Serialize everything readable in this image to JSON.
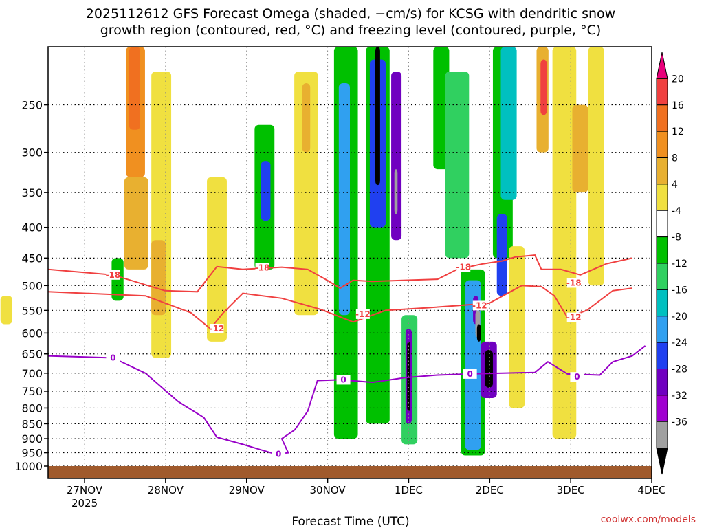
{
  "title": {
    "line1": "2025112612 GFS Forecast Omega (shaded, −cm/s) for KCSG with dendritic snow",
    "line2": "growth region (contoured, red, °C) and freezing level (contoured, purple, °C)"
  },
  "xlabel": "Forecast Time (UTC)",
  "credit": "coolwx.com/models",
  "chart_data": {
    "type": "heatmap",
    "x_range": [
      "2025-11-26T12",
      "2025-12-04T00"
    ],
    "y_axis": {
      "unit": "hPa",
      "range": [
        1000,
        200
      ],
      "ticks": [
        250,
        300,
        350,
        400,
        450,
        500,
        550,
        600,
        650,
        700,
        750,
        800,
        850,
        900,
        950,
        1000
      ]
    },
    "x_ticks": [
      {
        "day": 1,
        "label": "27NOV",
        "sub": "2025"
      },
      {
        "day": 2,
        "label": "28NOV",
        "sub": ""
      },
      {
        "day": 3,
        "label": "29NOV",
        "sub": ""
      },
      {
        "day": 4,
        "label": "30NOV",
        "sub": ""
      },
      {
        "day": 5,
        "label": "1DEC",
        "sub": ""
      },
      {
        "day": 6,
        "label": "2DEC",
        "sub": ""
      },
      {
        "day": 7,
        "label": "3DEC",
        "sub": ""
      },
      {
        "day": 8,
        "label": "4DEC",
        "sub": ""
      }
    ],
    "colorbar": {
      "levels": [
        20,
        16,
        12,
        8,
        4,
        -4,
        -8,
        -12,
        -16,
        -20,
        -24,
        -28,
        -32,
        -36
      ],
      "colors": [
        "#e8007a",
        "#f04040",
        "#f07020",
        "#f09020",
        "#e8b030",
        "#f0e040",
        "#ffffff",
        "#00c000",
        "#30d060",
        "#00c0c0",
        "#30a0f0",
        "#2040f0",
        "#7000c0",
        "#a000d0",
        "#a0a0a0",
        "#000000"
      ]
    },
    "ground_color": "#a05a2c",
    "omega_cells": [
      {
        "x0": 2.68,
        "x1": 2.92,
        "p0": 200,
        "p1": 330,
        "c": "#f09020"
      },
      {
        "x0": 2.72,
        "x1": 2.86,
        "p0": 200,
        "p1": 275,
        "c": "#f07020"
      },
      {
        "x0": 2.66,
        "x1": 2.96,
        "p0": 330,
        "p1": 470,
        "c": "#e8b030"
      },
      {
        "x0": 3.0,
        "x1": 3.25,
        "p0": 220,
        "p1": 660,
        "c": "#f0e040"
      },
      {
        "x0": 3.0,
        "x1": 3.18,
        "p0": 420,
        "p1": 560,
        "c": "#e8b030"
      },
      {
        "x0": 2.5,
        "x1": 2.65,
        "p0": 450,
        "p1": 530,
        "c": "#00c000"
      },
      {
        "x0": 1.1,
        "x1": 1.25,
        "p0": 520,
        "p1": 580,
        "c": "#f0e040"
      },
      {
        "x0": 3.7,
        "x1": 3.95,
        "p0": 330,
        "p1": 620,
        "c": "#f0e040"
      },
      {
        "x0": 4.3,
        "x1": 4.55,
        "p0": 270,
        "p1": 470,
        "c": "#00c000"
      },
      {
        "x0": 4.38,
        "x1": 4.5,
        "p0": 310,
        "p1": 390,
        "c": "#2040f0"
      },
      {
        "x0": 4.8,
        "x1": 5.1,
        "p0": 220,
        "p1": 560,
        "c": "#f0e040"
      },
      {
        "x0": 4.9,
        "x1": 5.0,
        "p0": 230,
        "p1": 300,
        "c": "#e8b030"
      },
      {
        "x0": 5.3,
        "x1": 5.6,
        "p0": 200,
        "p1": 900,
        "c": "#00c000"
      },
      {
        "x0": 5.36,
        "x1": 5.5,
        "p0": 230,
        "p1": 560,
        "c": "#30a0f0"
      },
      {
        "x0": 5.7,
        "x1": 6.0,
        "p0": 200,
        "p1": 850,
        "c": "#00c000"
      },
      {
        "x0": 5.75,
        "x1": 5.95,
        "p0": 210,
        "p1": 400,
        "c": "#2040f0"
      },
      {
        "x0": 5.82,
        "x1": 5.88,
        "p0": 200,
        "p1": 340,
        "c": "#000000"
      },
      {
        "x0": 6.02,
        "x1": 6.15,
        "p0": 220,
        "p1": 420,
        "c": "#7000c0"
      },
      {
        "x0": 6.06,
        "x1": 6.1,
        "p0": 320,
        "p1": 380,
        "c": "#a0a0a0"
      },
      {
        "x0": 6.15,
        "x1": 6.35,
        "p0": 560,
        "p1": 920,
        "c": "#30d060"
      },
      {
        "x0": 6.2,
        "x1": 6.28,
        "p0": 590,
        "p1": 850,
        "c": "#7000c0"
      },
      {
        "x0": 6.22,
        "x1": 6.26,
        "p0": 620,
        "p1": 810,
        "c": "#000000"
      },
      {
        "x0": 6.55,
        "x1": 6.75,
        "p0": 200,
        "p1": 320,
        "c": "#00c000"
      },
      {
        "x0": 6.7,
        "x1": 7.0,
        "p0": 220,
        "p1": 450,
        "c": "#30d060"
      },
      {
        "x0": 6.9,
        "x1": 7.2,
        "p0": 470,
        "p1": 960,
        "c": "#00c000"
      },
      {
        "x0": 6.95,
        "x1": 7.15,
        "p0": 490,
        "p1": 940,
        "c": "#30a0f0"
      },
      {
        "x0": 7.05,
        "x1": 7.12,
        "p0": 520,
        "p1": 580,
        "c": "#7000c0"
      },
      {
        "x0": 7.08,
        "x1": 7.14,
        "p0": 550,
        "p1": 610,
        "c": "#a0a0a0"
      },
      {
        "x0": 7.1,
        "x1": 7.15,
        "p0": 580,
        "p1": 620,
        "c": "#000000"
      },
      {
        "x0": 7.15,
        "x1": 7.35,
        "p0": 620,
        "p1": 770,
        "c": "#7000c0"
      },
      {
        "x0": 7.2,
        "x1": 7.3,
        "p0": 640,
        "p1": 740,
        "c": "#000000"
      },
      {
        "x0": 7.3,
        "x1": 7.55,
        "p0": 200,
        "p1": 450,
        "c": "#00c000"
      },
      {
        "x0": 7.35,
        "x1": 7.48,
        "p0": 380,
        "p1": 520,
        "c": "#2040f0"
      },
      {
        "x0": 7.4,
        "x1": 7.6,
        "p0": 200,
        "p1": 360,
        "c": "#00c0c0"
      },
      {
        "x0": 7.85,
        "x1": 8.0,
        "p0": 200,
        "p1": 300,
        "c": "#e8b030"
      },
      {
        "x0": 7.9,
        "x1": 7.98,
        "p0": 210,
        "p1": 260,
        "c": "#f04040"
      },
      {
        "x0": 8.05,
        "x1": 8.35,
        "p0": 200,
        "p1": 900,
        "c": "#f0e040"
      },
      {
        "x0": 8.3,
        "x1": 8.5,
        "p0": 250,
        "p1": 350,
        "c": "#e8b030"
      },
      {
        "x0": 8.5,
        "x1": 8.7,
        "p0": 200,
        "p1": 500,
        "c": "#f0e040"
      },
      {
        "x0": 7.5,
        "x1": 7.7,
        "p0": 430,
        "p1": 800,
        "c": "#f0e040"
      }
    ],
    "contours": [
      {
        "level": "-18",
        "color": "#f04040",
        "points": [
          [
            0,
            470
          ],
          [
            1.0,
            480
          ],
          [
            1.8,
            510
          ],
          [
            2.3,
            512
          ],
          [
            2.6,
            465
          ],
          [
            3.0,
            470
          ],
          [
            3.6,
            466
          ],
          [
            4.0,
            470
          ],
          [
            4.3,
            490
          ],
          [
            4.5,
            505
          ],
          [
            4.7,
            490
          ],
          [
            5.0,
            492
          ],
          [
            5.5,
            490
          ],
          [
            6.0,
            488
          ],
          [
            6.3,
            470
          ],
          [
            6.7,
            460
          ],
          [
            7.0,
            455
          ],
          [
            7.2,
            448
          ],
          [
            7.5,
            445
          ],
          [
            7.6,
            470
          ],
          [
            7.9,
            470
          ],
          [
            8.2,
            480
          ],
          [
            8.6,
            460
          ],
          [
            9.0,
            450
          ]
        ],
        "labels": [
          [
            1.0,
            480
          ],
          [
            3.3,
            467
          ],
          [
            6.4,
            466
          ],
          [
            8.1,
            495
          ]
        ]
      },
      {
        "level": "-12",
        "color": "#f04040",
        "points": [
          [
            0,
            512
          ],
          [
            1.5,
            520
          ],
          [
            2.2,
            555
          ],
          [
            2.5,
            590
          ],
          [
            2.7,
            555
          ],
          [
            3.0,
            515
          ],
          [
            3.6,
            525
          ],
          [
            4.2,
            548
          ],
          [
            4.7,
            575
          ],
          [
            5.2,
            550
          ],
          [
            5.8,
            545
          ],
          [
            6.3,
            540
          ],
          [
            6.8,
            535
          ],
          [
            7.3,
            500
          ],
          [
            7.6,
            502
          ],
          [
            7.8,
            520
          ],
          [
            8.0,
            565
          ],
          [
            8.3,
            550
          ],
          [
            8.7,
            510
          ],
          [
            9.0,
            505
          ]
        ],
        "labels": [
          [
            2.6,
            590
          ],
          [
            4.85,
            558
          ],
          [
            6.65,
            540
          ],
          [
            8.1,
            565
          ]
        ]
      },
      {
        "level": "0",
        "color": "#9800c8",
        "points": [
          [
            0,
            655
          ],
          [
            1.0,
            660
          ],
          [
            1.5,
            700
          ],
          [
            2.0,
            780
          ],
          [
            2.4,
            830
          ],
          [
            2.6,
            895
          ],
          [
            3.0,
            920
          ],
          [
            3.5,
            955
          ],
          [
            3.7,
            950
          ],
          [
            3.6,
            900
          ],
          [
            3.8,
            870
          ],
          [
            4.0,
            810
          ],
          [
            4.15,
            720
          ],
          [
            4.5,
            718
          ],
          [
            5.0,
            725
          ],
          [
            5.5,
            712
          ],
          [
            6.0,
            705
          ],
          [
            6.5,
            702
          ],
          [
            7.0,
            700
          ],
          [
            7.5,
            698
          ],
          [
            7.7,
            670
          ],
          [
            8.0,
            702
          ],
          [
            8.5,
            705
          ],
          [
            8.7,
            670
          ],
          [
            9.0,
            655
          ],
          [
            9.2,
            630
          ]
        ],
        "labels": [
          [
            1.0,
            660
          ],
          [
            3.55,
            955
          ],
          [
            4.55,
            718
          ],
          [
            6.5,
            702
          ],
          [
            8.15,
            710
          ]
        ]
      }
    ]
  }
}
